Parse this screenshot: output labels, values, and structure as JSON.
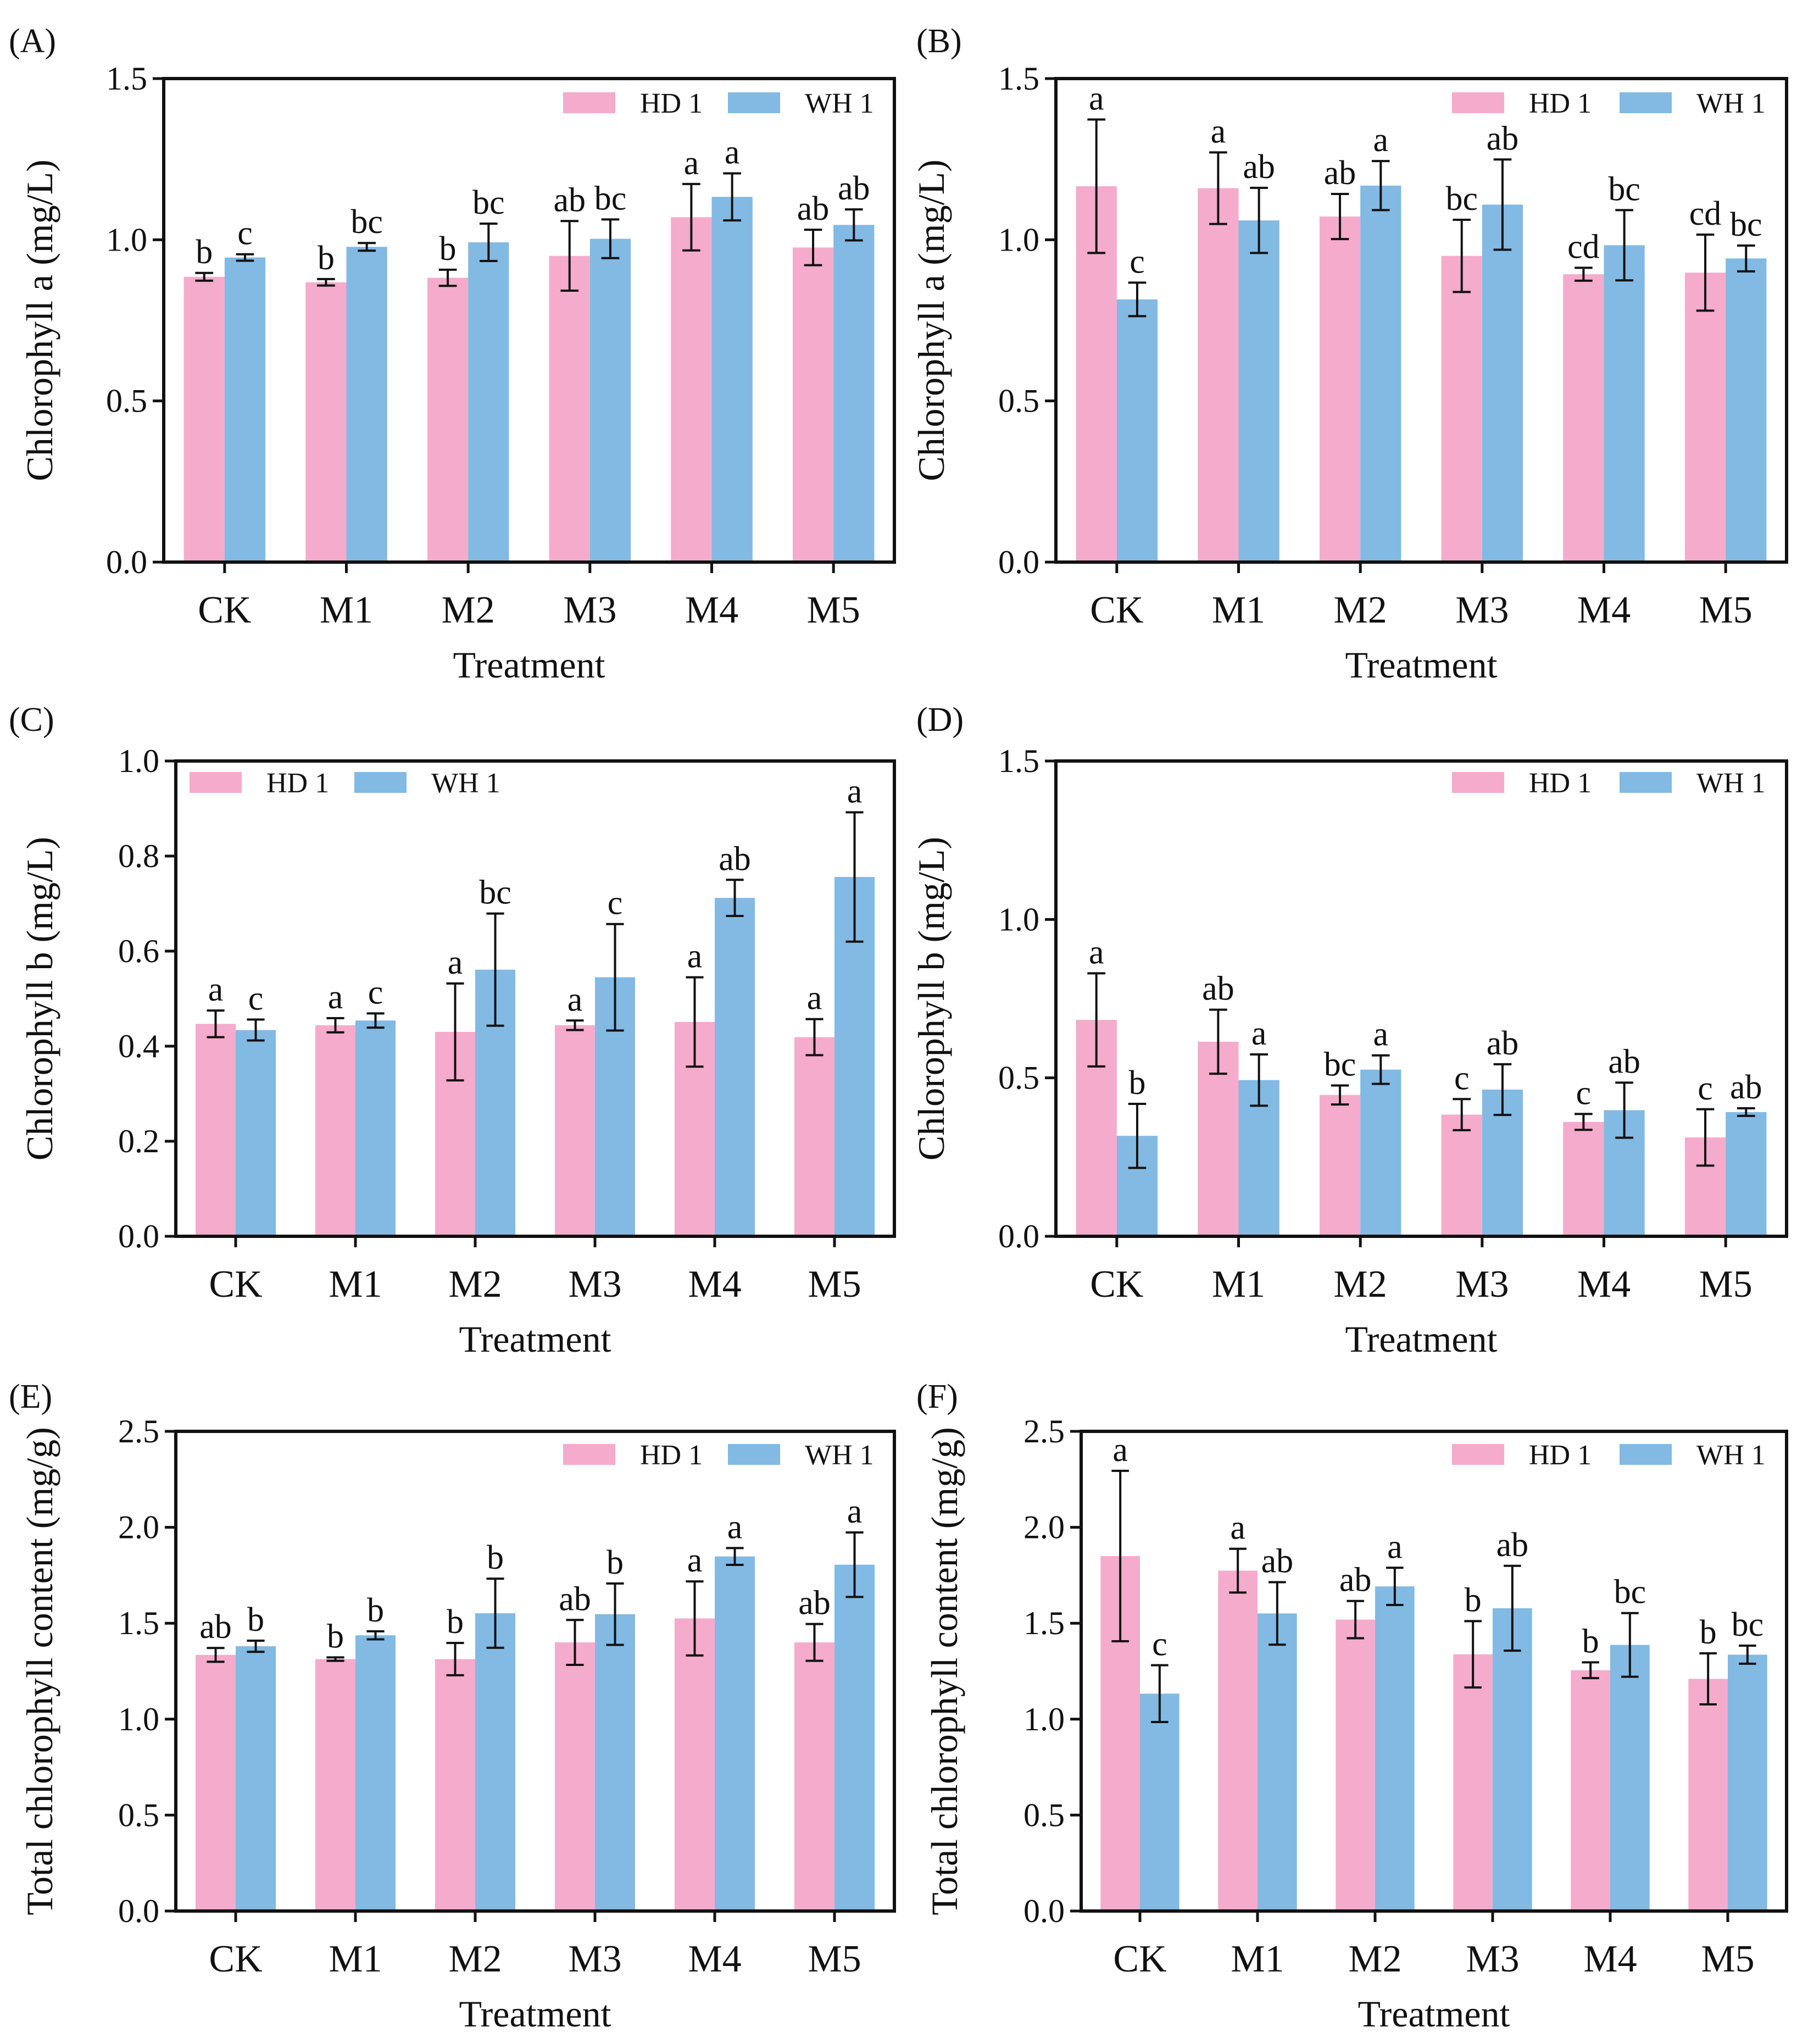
{
  "figure": {
    "colors": {
      "HD 1": "#f5abcc",
      "WH 1": "#82bae3",
      "frame": "#111111"
    },
    "series_names": [
      "HD 1",
      "WH 1"
    ]
  },
  "chart_data": [
    {
      "panel": "(A)",
      "type": "bar",
      "xlabel": "Treatment",
      "ylabel": "Chlorophyll a (mg/L)",
      "categories": [
        "CK",
        "M1",
        "M2",
        "M3",
        "M4",
        "M5"
      ],
      "ylim": [
        0,
        1.5
      ],
      "yticks": [
        0.0,
        0.5,
        1.0,
        1.5
      ],
      "ytick_labels": [
        "0.0",
        "0.5",
        "1.0",
        "1.5"
      ],
      "legend": "top-right",
      "series": [
        {
          "name": "HD 1",
          "values": [
            0.885,
            0.868,
            0.882,
            0.95,
            1.07,
            0.976
          ],
          "errors": [
            0.012,
            0.01,
            0.025,
            0.108,
            0.103,
            0.055
          ],
          "letters": [
            "b",
            "b",
            "b",
            "ab",
            "a",
            "ab"
          ]
        },
        {
          "name": "WH 1",
          "values": [
            0.945,
            0.978,
            0.992,
            1.003,
            1.133,
            1.046
          ],
          "errors": [
            0.01,
            0.012,
            0.058,
            0.06,
            0.073,
            0.048
          ],
          "letters": [
            "c",
            "bc",
            "bc",
            "bc",
            "a",
            "ab"
          ]
        }
      ]
    },
    {
      "panel": "(B)",
      "type": "bar",
      "xlabel": "Treatment",
      "ylabel": "Chlorophyll a (mg/L)",
      "categories": [
        "CK",
        "M1",
        "M2",
        "M3",
        "M4",
        "M5"
      ],
      "ylim": [
        0,
        1.5
      ],
      "yticks": [
        0.0,
        0.5,
        1.0,
        1.5
      ],
      "ytick_labels": [
        "0.0",
        "0.5",
        "1.0",
        "1.5"
      ],
      "legend": "top-right",
      "series": [
        {
          "name": "HD 1",
          "values": [
            1.166,
            1.16,
            1.072,
            0.95,
            0.893,
            0.898
          ],
          "errors": [
            0.207,
            0.111,
            0.07,
            0.112,
            0.02,
            0.118
          ],
          "letters": [
            "a",
            "a",
            "ab",
            "bc",
            "cd",
            "cd"
          ]
        },
        {
          "name": "WH 1",
          "values": [
            0.815,
            1.06,
            1.168,
            1.109,
            0.983,
            0.942
          ],
          "errors": [
            0.052,
            0.101,
            0.076,
            0.14,
            0.109,
            0.04
          ],
          "letters": [
            "c",
            "ab",
            "a",
            "ab",
            "bc",
            "bc"
          ]
        }
      ]
    },
    {
      "panel": "(C)",
      "type": "bar",
      "xlabel": "Treatment",
      "ylabel": "Chlorophyll b (mg/L)",
      "categories": [
        "CK",
        "M1",
        "M2",
        "M3",
        "M4",
        "M5"
      ],
      "ylim": [
        0,
        1.0
      ],
      "yticks": [
        0.0,
        0.2,
        0.4,
        0.6,
        0.8,
        1.0
      ],
      "ytick_labels": [
        "0.0",
        "0.2",
        "0.4",
        "0.6",
        "0.8",
        "1.0"
      ],
      "legend": "top-left",
      "series": [
        {
          "name": "HD 1",
          "values": [
            0.447,
            0.444,
            0.43,
            0.444,
            0.451,
            0.419
          ],
          "errors": [
            0.028,
            0.015,
            0.102,
            0.01,
            0.094,
            0.038
          ],
          "letters": [
            "a",
            "a",
            "a",
            "a",
            "a",
            "a"
          ]
        },
        {
          "name": "WH 1",
          "values": [
            0.434,
            0.454,
            0.561,
            0.545,
            0.712,
            0.756
          ],
          "errors": [
            0.022,
            0.015,
            0.118,
            0.112,
            0.038,
            0.136
          ],
          "letters": [
            "c",
            "c",
            "bc",
            "c",
            "ab",
            "a"
          ]
        }
      ]
    },
    {
      "panel": "(D)",
      "type": "bar",
      "xlabel": "Treatment",
      "ylabel": "Chlorophyll b (mg/L)",
      "categories": [
        "CK",
        "M1",
        "M2",
        "M3",
        "M4",
        "M5"
      ],
      "ylim": [
        0,
        1.5
      ],
      "yticks": [
        0.0,
        0.5,
        1.0,
        1.5
      ],
      "ytick_labels": [
        "0.0",
        "0.5",
        "1.0",
        "1.5"
      ],
      "legend": "top-right",
      "series": [
        {
          "name": "HD 1",
          "values": [
            0.683,
            0.614,
            0.446,
            0.384,
            0.361,
            0.312
          ],
          "errors": [
            0.147,
            0.101,
            0.03,
            0.049,
            0.025,
            0.089
          ],
          "letters": [
            "a",
            "ab",
            "bc",
            "c",
            "c",
            "c"
          ]
        },
        {
          "name": "WH 1",
          "values": [
            0.317,
            0.493,
            0.526,
            0.463,
            0.398,
            0.392
          ],
          "errors": [
            0.101,
            0.081,
            0.045,
            0.08,
            0.087,
            0.012
          ],
          "letters": [
            "b",
            "a",
            "a",
            "ab",
            "ab",
            "ab"
          ]
        }
      ]
    },
    {
      "panel": "(E)",
      "type": "bar",
      "xlabel": "Treatment",
      "ylabel": "Total chlorophyll  content (mg/g)",
      "categories": [
        "CK",
        "M1",
        "M2",
        "M3",
        "M4",
        "M5"
      ],
      "ylim": [
        0,
        2.5
      ],
      "yticks": [
        0.0,
        0.5,
        1.0,
        1.5,
        2.0,
        2.5
      ],
      "ytick_labels": [
        "0.0",
        "0.5",
        "1.0",
        "1.5",
        "2.0",
        "2.5"
      ],
      "legend": "top-right",
      "series": [
        {
          "name": "HD 1",
          "values": [
            1.335,
            1.313,
            1.313,
            1.4,
            1.525,
            1.4
          ],
          "errors": [
            0.036,
            0.009,
            0.084,
            0.117,
            0.193,
            0.096
          ],
          "letters": [
            "ab",
            "b",
            "b",
            "ab",
            "a",
            "ab"
          ]
        },
        {
          "name": "WH 1",
          "values": [
            1.38,
            1.437,
            1.552,
            1.547,
            1.848,
            1.805
          ],
          "errors": [
            0.029,
            0.021,
            0.18,
            0.16,
            0.044,
            0.168
          ],
          "letters": [
            "b",
            "b",
            "b",
            "b",
            "a",
            "a"
          ]
        }
      ]
    },
    {
      "panel": "(F)",
      "type": "bar",
      "xlabel": "Treatment",
      "ylabel": "Total chlorophyll  content (mg/g)",
      "categories": [
        "CK",
        "M1",
        "M2",
        "M3",
        "M4",
        "M5"
      ],
      "ylim": [
        0,
        2.5
      ],
      "yticks": [
        0.0,
        0.5,
        1.0,
        1.5,
        2.0,
        2.5
      ],
      "ytick_labels": [
        "0.0",
        "0.5",
        "1.0",
        "1.5",
        "2.0",
        "2.5"
      ],
      "legend": "top-right",
      "series": [
        {
          "name": "HD 1",
          "values": [
            1.85,
            1.774,
            1.519,
            1.338,
            1.255,
            1.21
          ],
          "errors": [
            0.444,
            0.114,
            0.097,
            0.173,
            0.041,
            0.133
          ],
          "letters": [
            "a",
            "a",
            "ab",
            "b",
            "b",
            "b"
          ]
        },
        {
          "name": "WH 1",
          "values": [
            1.133,
            1.551,
            1.692,
            1.578,
            1.387,
            1.336
          ],
          "errors": [
            0.148,
            0.163,
            0.097,
            0.221,
            0.166,
            0.047
          ],
          "letters": [
            "c",
            "ab",
            "a",
            "ab",
            "bc",
            "bc"
          ]
        }
      ]
    }
  ]
}
